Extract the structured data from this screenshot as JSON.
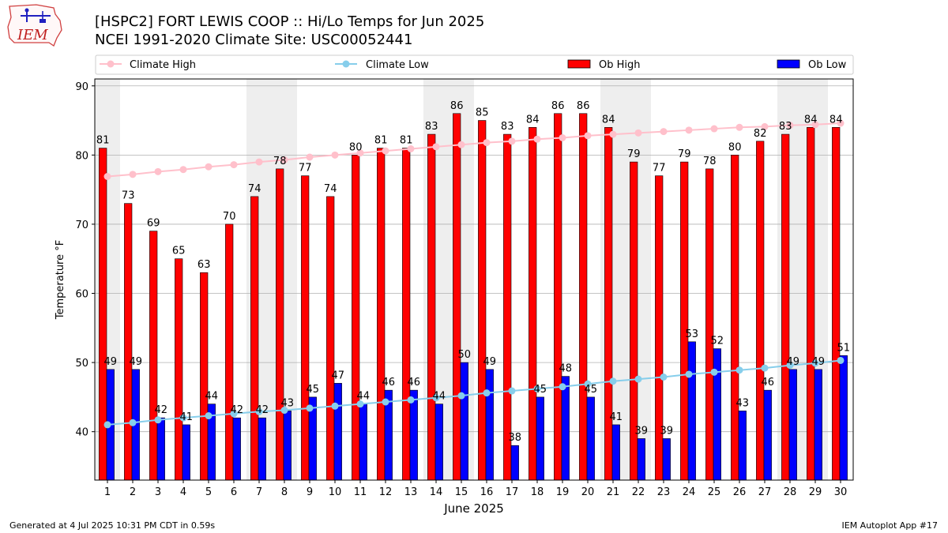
{
  "header": {
    "title_line1": "[HSPC2] FORT LEWIS COOP :: Hi/Lo Temps for Jun 2025",
    "title_line2": "NCEI 1991-2020 Climate Site: USC00052441",
    "logo_text": "IEM"
  },
  "footer": {
    "generated": "Generated at 4 Jul 2025 10:31 PM CDT in 0.59s",
    "app": "IEM Autoplot App #17"
  },
  "colors": {
    "ob_high": "#ff0000",
    "ob_low": "#0000ff",
    "climate_high": "#ffc0cb",
    "climate_low": "#87ceeb",
    "weekend_shade": "#eeeeee",
    "grid": "#b0b0b0"
  },
  "chart_data": {
    "type": "bar",
    "xlabel": "June 2025",
    "ylabel": "Temperature °F",
    "ylim": [
      33,
      91
    ],
    "yticks": [
      40,
      50,
      60,
      70,
      80,
      90
    ],
    "grid": "horizontal",
    "legend_placement": "top",
    "shaded_days": [
      1,
      7,
      8,
      14,
      15,
      21,
      22,
      28,
      29
    ],
    "categories": [
      "1",
      "2",
      "3",
      "4",
      "5",
      "6",
      "7",
      "8",
      "9",
      "10",
      "11",
      "12",
      "13",
      "14",
      "15",
      "16",
      "17",
      "18",
      "19",
      "20",
      "21",
      "22",
      "23",
      "24",
      "25",
      "26",
      "27",
      "28",
      "29",
      "30"
    ],
    "series": [
      {
        "name": "Climate High",
        "kind": "line",
        "values": [
          76.9,
          77.2,
          77.6,
          77.9,
          78.3,
          78.6,
          79.0,
          79.3,
          79.7,
          80.0,
          80.3,
          80.6,
          80.9,
          81.2,
          81.5,
          81.8,
          82.0,
          82.3,
          82.5,
          82.8,
          83.0,
          83.2,
          83.4,
          83.6,
          83.8,
          84.0,
          84.1,
          84.3,
          84.4,
          84.6
        ]
      },
      {
        "name": "Climate Low",
        "kind": "line",
        "values": [
          41.0,
          41.3,
          41.7,
          42.0,
          42.3,
          42.6,
          42.9,
          43.1,
          43.4,
          43.7,
          44.0,
          44.3,
          44.6,
          44.9,
          45.2,
          45.6,
          45.9,
          46.2,
          46.5,
          46.9,
          47.3,
          47.6,
          47.9,
          48.3,
          48.6,
          48.9,
          49.2,
          49.6,
          49.9,
          50.3
        ]
      },
      {
        "name": "Ob High",
        "kind": "bar",
        "values": [
          81,
          73,
          69,
          65,
          63,
          70,
          74,
          78,
          77,
          74,
          80,
          81,
          81,
          83,
          86,
          85,
          83,
          84,
          86,
          86,
          84,
          79,
          77,
          79,
          78,
          80,
          82,
          83,
          84,
          84
        ]
      },
      {
        "name": "Ob Low",
        "kind": "bar",
        "values": [
          49,
          49,
          42,
          41,
          44,
          42,
          42,
          43,
          45,
          47,
          44,
          46,
          46,
          44,
          50,
          49,
          38,
          45,
          48,
          45,
          41,
          39,
          39,
          53,
          52,
          43,
          46,
          49,
          49,
          51
        ]
      }
    ]
  }
}
